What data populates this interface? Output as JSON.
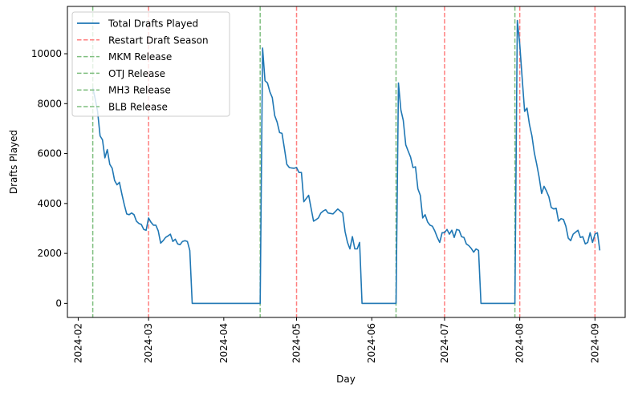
{
  "chart_data": {
    "type": "line",
    "title": "",
    "xlabel": "Day",
    "ylabel": "Drafts Played",
    "start_date": "2024-02-07",
    "x_axis_origin_date": "2024-02-01",
    "xlim_days_from_origin": [
      -4.45,
      225.45
    ],
    "ylim": [
      -566,
      11896
    ],
    "grid": false,
    "legend_placement": "top-left",
    "yticks": [
      0,
      2000,
      4000,
      6000,
      8000,
      10000
    ],
    "xticks": [
      {
        "label": "2024-02",
        "day": 0
      },
      {
        "label": "2024-03",
        "day": 29
      },
      {
        "label": "2024-04",
        "day": 60
      },
      {
        "label": "2024-05",
        "day": 90
      },
      {
        "label": "2024-06",
        "day": 121
      },
      {
        "label": "2024-07",
        "day": 151
      },
      {
        "label": "2024-08",
        "day": 182
      },
      {
        "label": "2024-09",
        "day": 213
      }
    ],
    "series": [
      {
        "name": "Total Drafts Played",
        "color": "#1f77b4",
        "values": [
          8630,
          8200,
          7690,
          6710,
          6550,
          5830,
          6160,
          5570,
          5410,
          4920,
          4750,
          4850,
          4370,
          3950,
          3580,
          3550,
          3620,
          3550,
          3290,
          3200,
          3160,
          2960,
          2930,
          3420,
          3250,
          3130,
          3130,
          2900,
          2410,
          2510,
          2640,
          2700,
          2770,
          2480,
          2570,
          2380,
          2350,
          2480,
          2510,
          2480,
          2120,
          0,
          0,
          0,
          0,
          0,
          0,
          0,
          0,
          0,
          0,
          0,
          0,
          0,
          0,
          0,
          0,
          0,
          0,
          0,
          0,
          0,
          0,
          0,
          0,
          0,
          0,
          0,
          0,
          0,
          10230,
          8920,
          8830,
          8470,
          8240,
          7520,
          7260,
          6840,
          6810,
          6200,
          5570,
          5440,
          5420,
          5410,
          5440,
          5240,
          5240,
          4070,
          4200,
          4330,
          3800,
          3290,
          3350,
          3420,
          3620,
          3700,
          3750,
          3620,
          3600,
          3580,
          3680,
          3780,
          3700,
          3620,
          2870,
          2440,
          2180,
          2670,
          2180,
          2180,
          2440,
          0,
          0,
          0,
          0,
          0,
          0,
          0,
          0,
          0,
          0,
          0,
          0,
          0,
          0,
          0,
          8830,
          7750,
          7330,
          6350,
          6100,
          5860,
          5440,
          5470,
          4590,
          4330,
          3420,
          3550,
          3260,
          3130,
          3090,
          2900,
          2640,
          2440,
          2830,
          2830,
          2960,
          2770,
          2930,
          2640,
          2960,
          2930,
          2670,
          2640,
          2380,
          2310,
          2200,
          2050,
          2180,
          2120,
          0,
          0,
          0,
          0,
          0,
          0,
          0,
          0,
          0,
          0,
          0,
          0,
          0,
          0,
          0,
          11330,
          10400,
          9000,
          7690,
          7820,
          7170,
          6710,
          6030,
          5570,
          5050,
          4400,
          4690,
          4500,
          4270,
          3840,
          3780,
          3810,
          3290,
          3390,
          3360,
          3090,
          2610,
          2510,
          2770,
          2850,
          2930,
          2640,
          2670,
          2380,
          2440,
          2830,
          2440,
          2770,
          2830,
          2120
        ]
      }
    ],
    "vlines": [
      {
        "name": "Restart Draft Season",
        "color": "#ff7f7f",
        "dates": [
          "2024-03-01",
          "2024-05-01",
          "2024-07-01",
          "2024-08-01",
          "2024-09-01"
        ],
        "days": [
          29,
          90,
          151,
          182,
          213
        ]
      },
      {
        "name": "MKM Release",
        "color": "#7fbf7f",
        "dates": [
          "2024-02-07"
        ],
        "days": [
          6
        ]
      },
      {
        "name": "OTJ Release",
        "color": "#7fbf7f",
        "dates": [
          "2024-04-16"
        ],
        "days": [
          75
        ]
      },
      {
        "name": "MH3 Release",
        "color": "#7fbf7f",
        "dates": [
          "2024-06-11"
        ],
        "days": [
          131
        ]
      },
      {
        "name": "BLB Release",
        "color": "#7fbf7f",
        "dates": [
          "2024-07-30"
        ],
        "days": [
          180
        ]
      }
    ],
    "legend": [
      "Total Drafts Played",
      "Restart Draft Season",
      "MKM Release",
      "OTJ Release",
      "MH3 Release",
      "BLB Release"
    ]
  }
}
